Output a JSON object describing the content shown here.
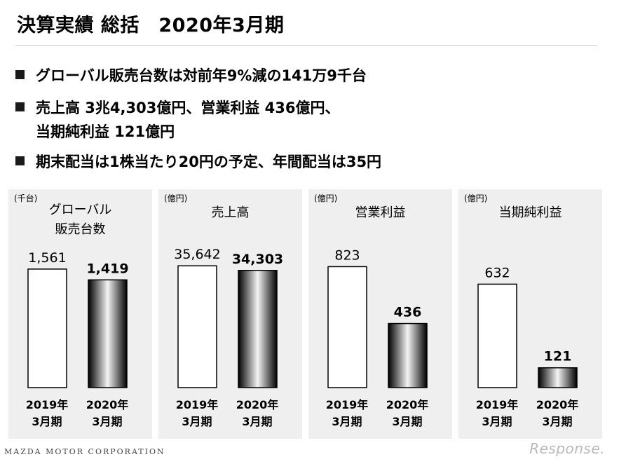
{
  "slide": {
    "title": "決算実績 総括　2020年3月期",
    "bullets": [
      {
        "text": "グローバル販売台数は対前年9%減の141万9千台",
        "cont": ""
      },
      {
        "text": "売上高 3兆4,303億円、営業利益 436億円、",
        "cont": "当期純利益 121億円"
      },
      {
        "text": "期末配当は1株当たり20円の予定、年間配当は35円",
        "cont": ""
      }
    ],
    "footer": "MAZDA MOTOR CORPORATION",
    "watermark": "Response."
  },
  "chart_data": [
    {
      "type": "bar",
      "unit": "(千台)",
      "title_lines": [
        "グローバル",
        "販売台数"
      ],
      "categories": [
        "2019年\n3月期",
        "2020年\n3月期"
      ],
      "values": [
        1561,
        1419
      ],
      "labels": [
        "1,561",
        "1,419"
      ],
      "ylim": [
        0,
        1800
      ]
    },
    {
      "type": "bar",
      "unit": "(億円)",
      "title_lines": [
        "売上高"
      ],
      "categories": [
        "2019年\n3月期",
        "2020年\n3月期"
      ],
      "values": [
        35642,
        34303
      ],
      "labels": [
        "35,642",
        "34,303"
      ],
      "ylim": [
        0,
        40000
      ]
    },
    {
      "type": "bar",
      "unit": "(億円)",
      "title_lines": [
        "営業利益"
      ],
      "categories": [
        "2019年\n3月期",
        "2020年\n3月期"
      ],
      "values": [
        823,
        436
      ],
      "labels": [
        "823",
        "436"
      ],
      "ylim": [
        0,
        930
      ]
    },
    {
      "type": "bar",
      "unit": "(億円)",
      "title_lines": [
        "当期純利益"
      ],
      "categories": [
        "2019年\n3月期",
        "2020年\n3月期"
      ],
      "values": [
        632,
        121
      ],
      "labels": [
        "632",
        "121"
      ],
      "ylim": [
        0,
        835
      ]
    }
  ]
}
